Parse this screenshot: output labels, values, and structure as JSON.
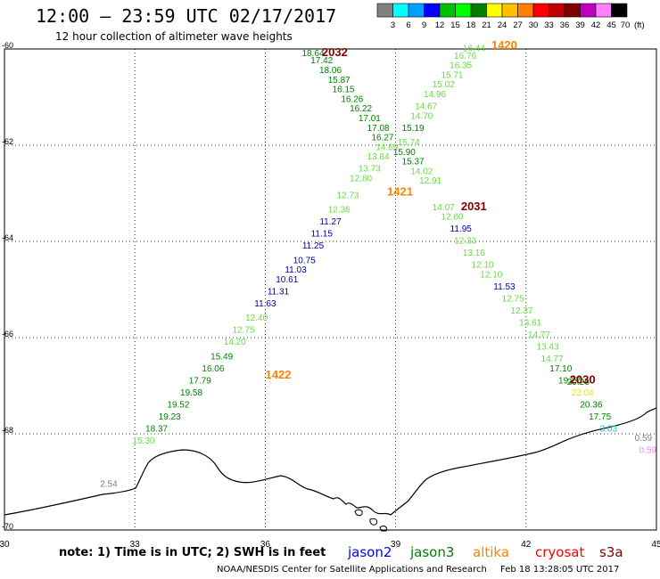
{
  "title": "12:00 – 23:59 UTC 02/17/2017",
  "subtitle": "12 hour collection of altimeter wave heights",
  "color_scale": {
    "unit": "(ft)",
    "labels": [
      "3",
      "6",
      "9",
      "12",
      "15",
      "18",
      "21",
      "24",
      "27",
      "30",
      "33",
      "36",
      "39",
      "42",
      "45",
      "70"
    ],
    "colors": [
      "#808080",
      "#00ffff",
      "#00a0ff",
      "#0000ff",
      "#00c000",
      "#00ff00",
      "#008000",
      "#ffff00",
      "#ffc000",
      "#ff8000",
      "#ff0000",
      "#c00000",
      "#800000",
      "#c000c0",
      "#ff80ff",
      "#000000"
    ]
  },
  "axes": {
    "lon_labels": [
      "30",
      "33",
      "36",
      "39",
      "42",
      "45"
    ],
    "lat_labels": [
      "-60",
      "-62",
      "-64",
      "-66",
      "-68",
      "-70"
    ]
  },
  "satellites": {
    "jason2": {
      "label": "jason2",
      "color": "#0000ff"
    },
    "jason3": {
      "label": "jason3",
      "color": "#008000"
    },
    "altika": {
      "label": "altika",
      "color": "#ff8000"
    },
    "cryosat": {
      "label": "cryosat",
      "color": "#ff0000"
    },
    "s3a": {
      "label": "s3a",
      "color": "#800000"
    }
  },
  "pass_labels": [
    {
      "text": "2032",
      "color": "#800000",
      "lon": 37.6,
      "lat": -60.15
    },
    {
      "text": "1420",
      "color": "#ff8000",
      "lon": 41.5,
      "lat": -60.0
    },
    {
      "text": "1421",
      "color": "#ff8000",
      "lon": 39.1,
      "lat": -63.05
    },
    {
      "text": "2031",
      "color": "#800000",
      "lon": 40.8,
      "lat": -63.35
    },
    {
      "text": "1422",
      "color": "#ff8000",
      "lon": 36.3,
      "lat": -66.85
    },
    {
      "text": "2030",
      "color": "#800000",
      "lon": 43.3,
      "lat": -66.95
    }
  ],
  "observations": [
    {
      "value": "18.64",
      "color": "#008000",
      "lon": 37.1,
      "lat": -60.15
    },
    {
      "value": "17.42",
      "color": "#008000",
      "lon": 37.3,
      "lat": -60.3
    },
    {
      "value": "18.06",
      "color": "#008000",
      "lon": 37.5,
      "lat": -60.5
    },
    {
      "value": "15.87",
      "color": "#008000",
      "lon": 37.7,
      "lat": -60.7
    },
    {
      "value": "16.15",
      "color": "#008000",
      "lon": 37.8,
      "lat": -60.9
    },
    {
      "value": "16.26",
      "color": "#008000",
      "lon": 38.0,
      "lat": -61.1
    },
    {
      "value": "16.22",
      "color": "#008000",
      "lon": 38.2,
      "lat": -61.3
    },
    {
      "value": "17.01",
      "color": "#008000",
      "lon": 38.4,
      "lat": -61.5
    },
    {
      "value": "17.08",
      "color": "#008000",
      "lon": 38.6,
      "lat": -61.7
    },
    {
      "value": "16.27",
      "color": "#008000",
      "lon": 38.7,
      "lat": -61.9
    },
    {
      "value": "14.69",
      "color": "#66dd44",
      "lon": 38.8,
      "lat": -62.1
    },
    {
      "value": "13.84",
      "color": "#66dd44",
      "lon": 38.6,
      "lat": -62.3
    },
    {
      "value": "13.73",
      "color": "#66dd44",
      "lon": 38.4,
      "lat": -62.55
    },
    {
      "value": "12.80",
      "color": "#66dd44",
      "lon": 38.2,
      "lat": -62.75
    },
    {
      "value": "12.73",
      "color": "#66dd44",
      "lon": 37.9,
      "lat": -63.1
    },
    {
      "value": "12.36",
      "color": "#66dd44",
      "lon": 37.7,
      "lat": -63.4
    },
    {
      "value": "11.27",
      "color": "#0000aa",
      "lon": 37.5,
      "lat": -63.65
    },
    {
      "value": "11.15",
      "color": "#0000aa",
      "lon": 37.3,
      "lat": -63.9
    },
    {
      "value": "11.25",
      "color": "#0000aa",
      "lon": 37.1,
      "lat": -64.15
    },
    {
      "value": "10.75",
      "color": "#0000aa",
      "lon": 36.9,
      "lat": -64.45
    },
    {
      "value": "11.03",
      "color": "#0000aa",
      "lon": 36.7,
      "lat": -64.65
    },
    {
      "value": "10.61",
      "color": "#0000aa",
      "lon": 36.5,
      "lat": -64.85
    },
    {
      "value": "11.31",
      "color": "#0000aa",
      "lon": 36.3,
      "lat": -65.1
    },
    {
      "value": "11.63",
      "color": "#0000aa",
      "lon": 36.0,
      "lat": -65.35
    },
    {
      "value": "12.40",
      "color": "#66dd44",
      "lon": 35.8,
      "lat": -65.65
    },
    {
      "value": "12.75",
      "color": "#66dd44",
      "lon": 35.5,
      "lat": -65.9
    },
    {
      "value": "14.20",
      "color": "#66dd44",
      "lon": 35.3,
      "lat": -66.15
    },
    {
      "value": "15.49",
      "color": "#008000",
      "lon": 35.0,
      "lat": -66.45
    },
    {
      "value": "16.06",
      "color": "#008000",
      "lon": 34.8,
      "lat": -66.7
    },
    {
      "value": "17.79",
      "color": "#008000",
      "lon": 34.5,
      "lat": -66.95
    },
    {
      "value": "19.58",
      "color": "#008000",
      "lon": 34.3,
      "lat": -67.2
    },
    {
      "value": "19.52",
      "color": "#008000",
      "lon": 34.0,
      "lat": -67.45
    },
    {
      "value": "19.23",
      "color": "#008000",
      "lon": 33.8,
      "lat": -67.7
    },
    {
      "value": "18.37",
      "color": "#008000",
      "lon": 33.5,
      "lat": -67.95
    },
    {
      "value": "15.30",
      "color": "#66dd44",
      "lon": 33.2,
      "lat": -68.2
    },
    {
      "value": "16.44",
      "color": "#66dd44",
      "lon": 40.8,
      "lat": -60.05
    },
    {
      "value": "16.76",
      "color": "#66dd44",
      "lon": 40.6,
      "lat": -60.2
    },
    {
      "value": "16.35",
      "color": "#66dd44",
      "lon": 40.5,
      "lat": -60.4
    },
    {
      "value": "15.71",
      "color": "#66dd44",
      "lon": 40.3,
      "lat": -60.6
    },
    {
      "value": "15.02",
      "color": "#66dd44",
      "lon": 40.1,
      "lat": -60.8
    },
    {
      "value": "14.96",
      "color": "#66dd44",
      "lon": 39.9,
      "lat": -61.0
    },
    {
      "value": "14.67",
      "color": "#66dd44",
      "lon": 39.7,
      "lat": -61.25
    },
    {
      "value": "14.70",
      "color": "#66dd44",
      "lon": 39.6,
      "lat": -61.45
    },
    {
      "value": "15.19",
      "color": "#008000",
      "lon": 39.4,
      "lat": -61.7
    },
    {
      "value": "15.74",
      "color": "#66dd44",
      "lon": 39.3,
      "lat": -62.0
    },
    {
      "value": "15.90",
      "color": "#008000",
      "lon": 39.2,
      "lat": -62.2
    },
    {
      "value": "15.37",
      "color": "#008000",
      "lon": 39.4,
      "lat": -62.4
    },
    {
      "value": "14.02",
      "color": "#66dd44",
      "lon": 39.6,
      "lat": -62.6
    },
    {
      "value": "12.91",
      "color": "#66dd44",
      "lon": 39.8,
      "lat": -62.8
    },
    {
      "value": "14.07",
      "color": "#66dd44",
      "lon": 40.1,
      "lat": -63.35
    },
    {
      "value": "12.60",
      "color": "#66dd44",
      "lon": 40.3,
      "lat": -63.55
    },
    {
      "value": "11.95",
      "color": "#0000aa",
      "lon": 40.5,
      "lat": -63.8
    },
    {
      "value": "12.33",
      "color": "#66dd44",
      "lon": 40.6,
      "lat": -64.05
    },
    {
      "value": "13.16",
      "color": "#66dd44",
      "lon": 40.8,
      "lat": -64.3
    },
    {
      "value": "12.10",
      "color": "#66dd44",
      "lon": 41.0,
      "lat": -64.55
    },
    {
      "value": "12.10",
      "color": "#66dd44",
      "lon": 41.2,
      "lat": -64.75
    },
    {
      "value": "11.53",
      "color": "#0000aa",
      "lon": 41.5,
      "lat": -65.0
    },
    {
      "value": "12.75",
      "color": "#66dd44",
      "lon": 41.7,
      "lat": -65.25
    },
    {
      "value": "12.37",
      "color": "#66dd44",
      "lon": 41.9,
      "lat": -65.5
    },
    {
      "value": "13.61",
      "color": "#66dd44",
      "lon": 42.1,
      "lat": -65.75
    },
    {
      "value": "14.77",
      "color": "#66dd44",
      "lon": 42.3,
      "lat": -66.0
    },
    {
      "value": "13.43",
      "color": "#66dd44",
      "lon": 42.5,
      "lat": -66.25
    },
    {
      "value": "14.77",
      "color": "#66dd44",
      "lon": 42.6,
      "lat": -66.5
    },
    {
      "value": "17.10",
      "color": "#008000",
      "lon": 42.8,
      "lat": -66.7
    },
    {
      "value": "19.27",
      "color": "#008000",
      "lon": 43.0,
      "lat": -66.95
    },
    {
      "value": "20.26",
      "color": "#008000",
      "lon": 43.2,
      "lat": -66.98
    },
    {
      "value": "22.04",
      "color": "#e8e800",
      "lon": 43.3,
      "lat": -67.2
    },
    {
      "value": "20.36",
      "color": "#008000",
      "lon": 43.5,
      "lat": -67.45
    },
    {
      "value": "17.75",
      "color": "#008000",
      "lon": 43.7,
      "lat": -67.7
    },
    {
      "value": "3.03",
      "color": "#00d0d0",
      "lon": 43.9,
      "lat": -67.95
    },
    {
      "value": "0.59",
      "color": "#808080",
      "lon": 44.7,
      "lat": -68.15
    },
    {
      "value": "0.59",
      "color": "#ff80ff",
      "lon": 44.8,
      "lat": -68.4
    },
    {
      "value": "2.54",
      "color": "#808080",
      "lon": 32.4,
      "lat": -69.1
    }
  ],
  "note": "note: 1) Time is in UTC; 2) SWH is in feet",
  "credit": "NOAA/NESDIS Center for Satellite Applications and Research",
  "timestamp": "Feb 18 13:28:05 UTC 2017"
}
